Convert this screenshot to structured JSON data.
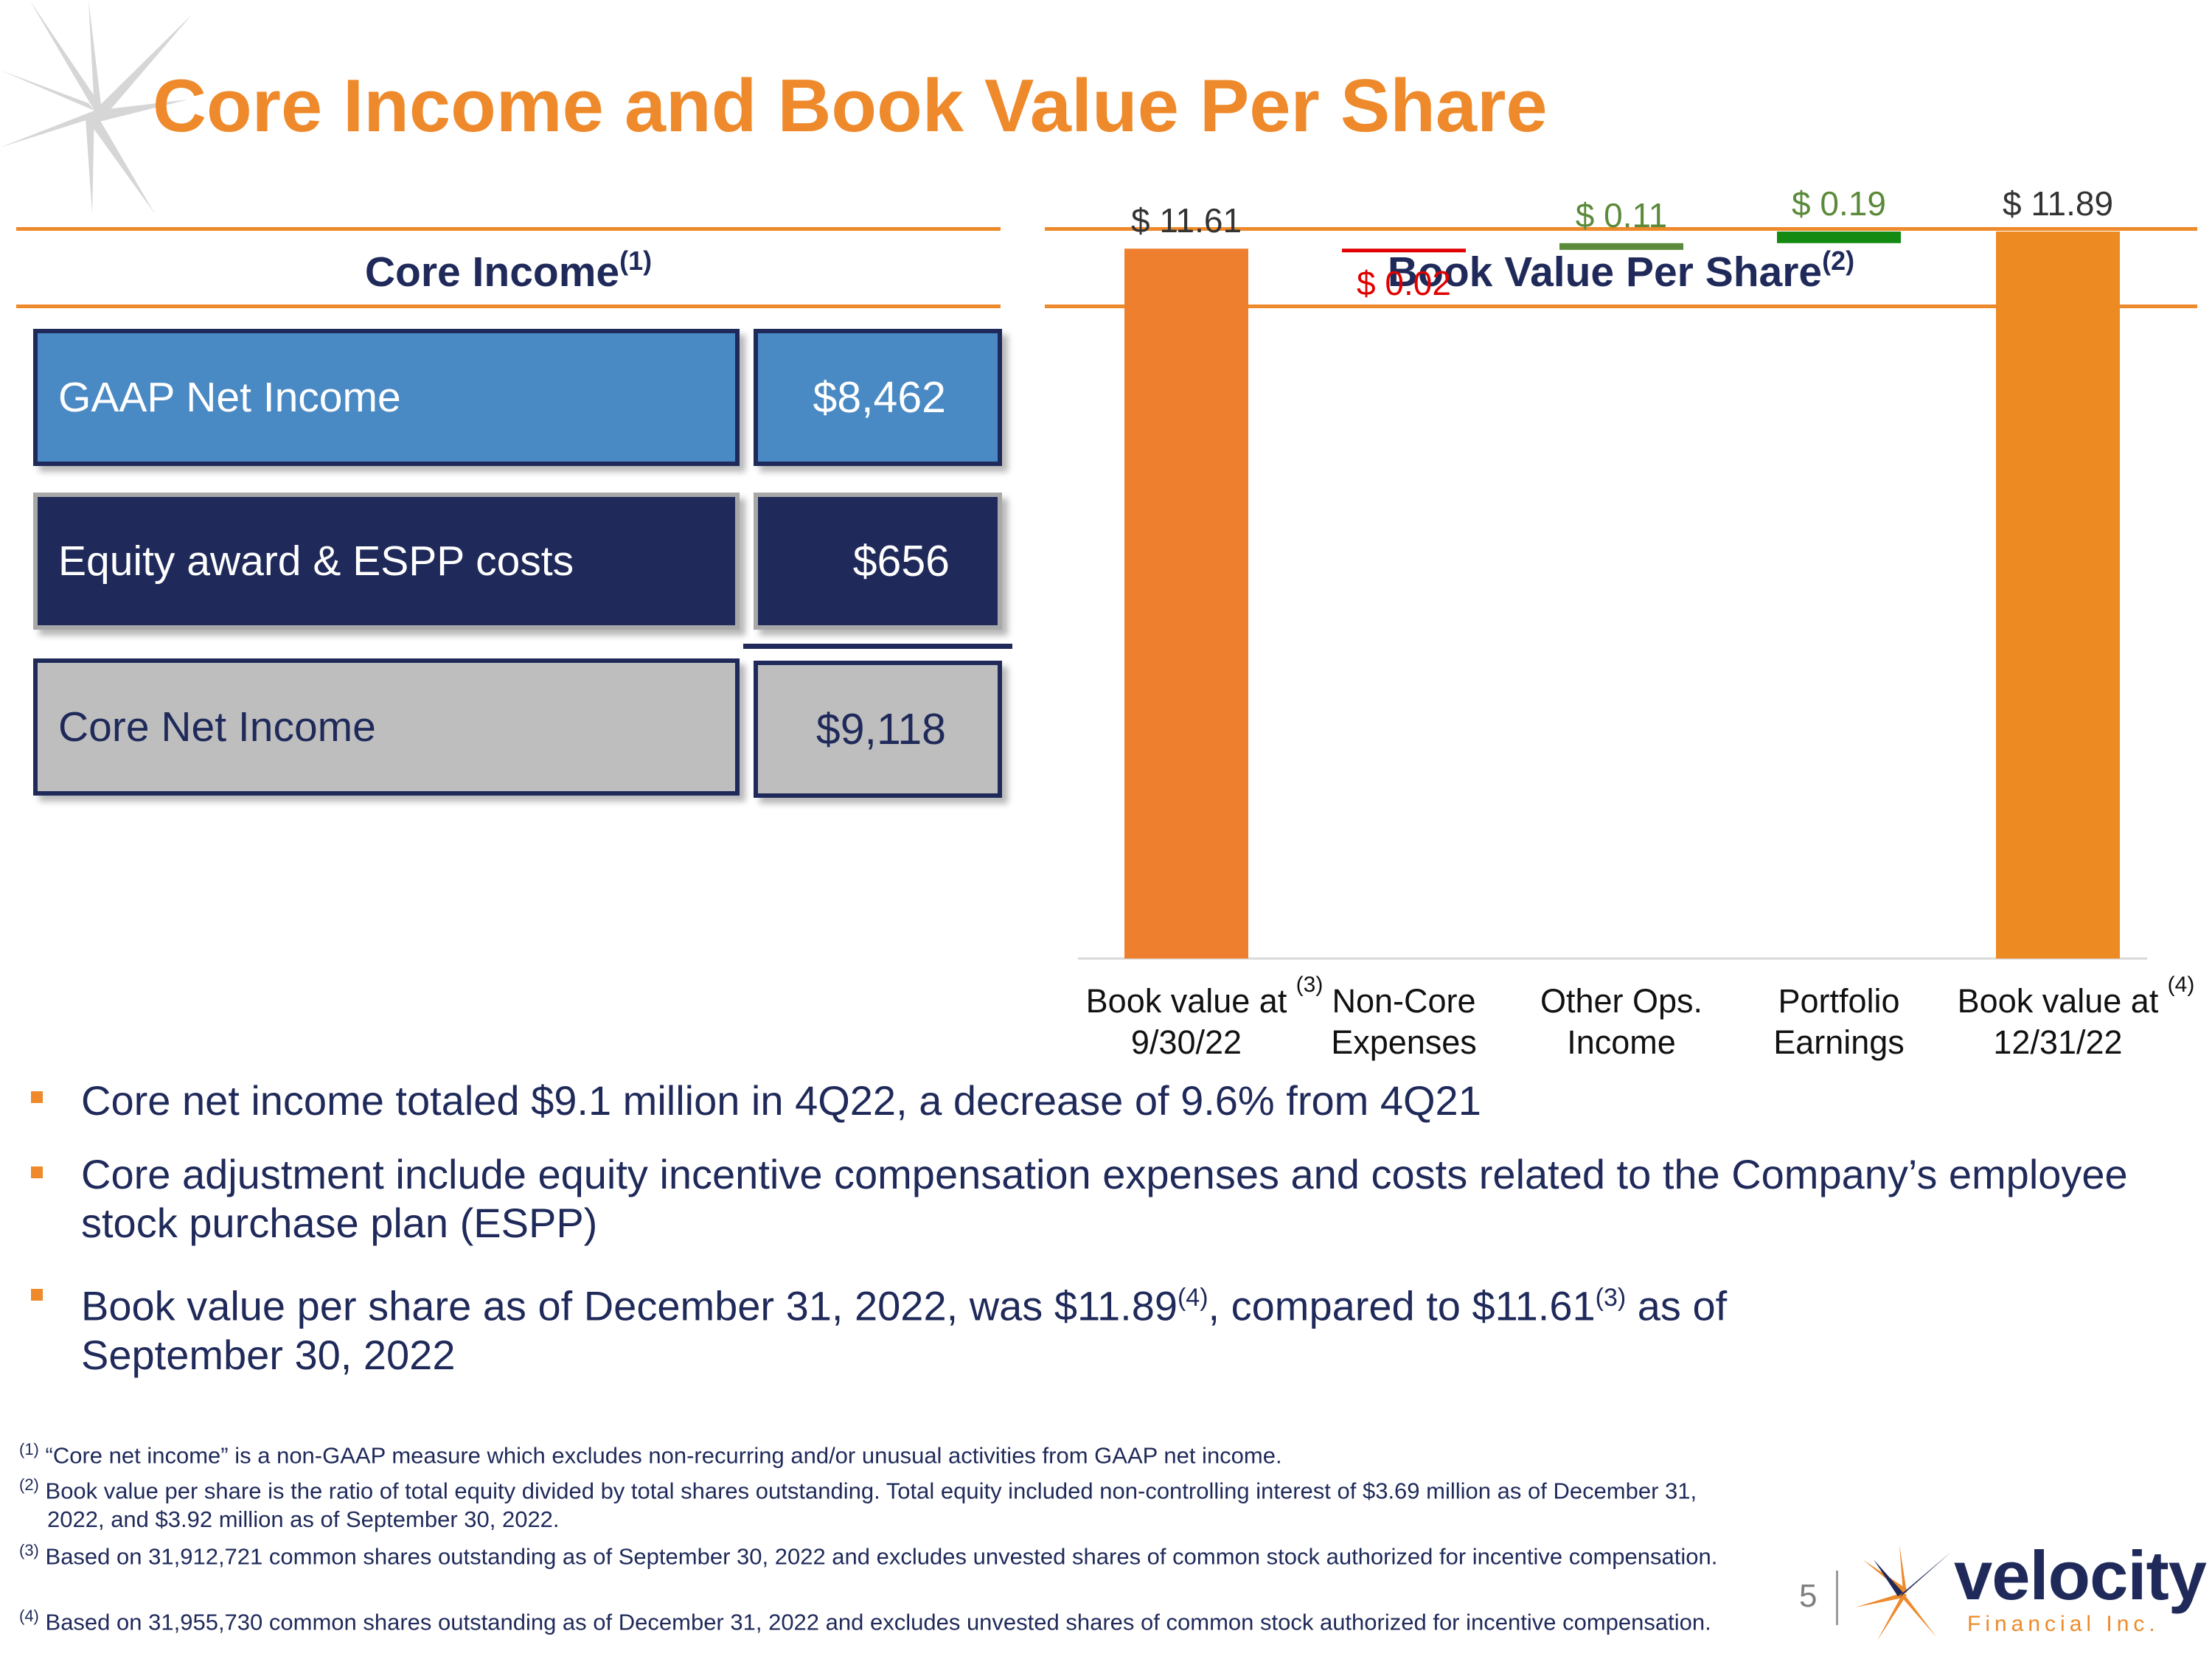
{
  "title": "Core Income and Book Value Per Share",
  "colors": {
    "accent_orange": "#EE8A2B",
    "navy": "#1F2A5A",
    "blue_box": "#4A8AC4",
    "gray_box": "#BEBEBE",
    "red": "#E00000",
    "olive_green": "#5B8A3A",
    "green": "#138A12"
  },
  "core_income": {
    "heading": "Core Income",
    "heading_sup": "(1)",
    "rows": [
      {
        "label": "GAAP Net Income",
        "value": "$8,462"
      },
      {
        "label": "Equity award & ESPP costs",
        "value": "$656"
      },
      {
        "label": "Core Net Income",
        "value": "$9,118"
      }
    ]
  },
  "book_value": {
    "heading": "Book Value Per Share",
    "heading_sup": "(2)"
  },
  "chart_data": {
    "type": "bar",
    "subtype": "waterfall",
    "title": "Book Value Per Share",
    "categories": [
      "Book value at 9/30/22",
      "Non-Core Expenses",
      "Other Ops. Income",
      "Portfolio Earnings",
      "Book value at 12/31/22"
    ],
    "category_lines": [
      [
        "Book value at",
        "9/30/22"
      ],
      [
        "Non-Core",
        "Expenses"
      ],
      [
        "Other Ops.",
        "Income"
      ],
      [
        "Portfolio",
        "Earnings"
      ],
      [
        "Book value at",
        "12/31/22"
      ]
    ],
    "category_sups": [
      "(3)",
      "",
      "",
      "",
      "(4)"
    ],
    "values": [
      11.61,
      -0.02,
      0.11,
      0.19,
      11.89
    ],
    "labels": [
      "$ 11.61",
      "$ 0.02",
      "$ 0.11",
      "$ 0.19",
      "$ 11.89"
    ],
    "kinds": [
      "total",
      "decrease",
      "increase",
      "increase",
      "total"
    ],
    "colors": [
      "#EE7F2F",
      "#E00000",
      "#5B8A3A",
      "#138A12",
      "#EE8A22"
    ],
    "label_colors": [
      "#333333",
      "#E00000",
      "#5B8A3A",
      "#5B8A3A",
      "#333333"
    ],
    "ylim": [
      0,
      12.3
    ],
    "grid": false,
    "legend": "none"
  },
  "bullets": [
    {
      "text": "Core net income totaled $9.1 million in 4Q22, a decrease of 9.6% from 4Q21"
    },
    {
      "text": "Core adjustment include equity incentive compensation expenses and costs related to the Company’s employee stock purchase plan (ESPP)"
    },
    {
      "text_a": "Book value per share as of December 31, 2022, was $11.89",
      "sup_a": "(4)",
      "text_b": ", compared to $11.61",
      "sup_b": "(3)",
      "text_c": " as of September 30, 2022"
    }
  ],
  "footnotes": [
    {
      "marker": "(1)",
      "text": "“Core net income” is a non-GAAP measure which excludes non-recurring and/or unusual activities from GAAP net income."
    },
    {
      "marker": "(2)",
      "text": "Book value per share is the ratio of total equity divided by total shares outstanding. Total equity included non-controlling interest of $3.69 million as of December 31, 2022, and $3.92 million as of September 30, 2022."
    },
    {
      "marker": "(3)",
      "text": "Based on 31,912,721 common shares outstanding as of September 30, 2022 and excludes unvested shares of common stock authorized for incentive compensation."
    },
    {
      "marker": "(4)",
      "text": "Based on 31,955,730 common shares outstanding as of December 31, 2022 and excludes unvested shares of common stock authorized for incentive compensation."
    }
  ],
  "page_number": "5",
  "logo": {
    "name": "velocity",
    "tagline": "Financial Inc."
  }
}
